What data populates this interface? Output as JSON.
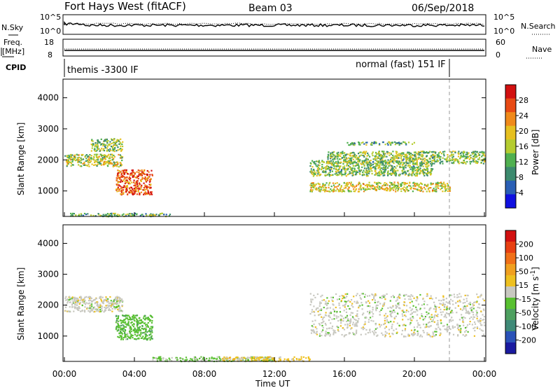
{
  "header": {
    "title": "Fort Hays West (fitACF)",
    "beam": "Beam 03",
    "date": "06/Sep/2018"
  },
  "panels": {
    "nsky_label": "N.Sky",
    "nsearch_label": "N.Search",
    "freq_label_1": "Freq.",
    "freq_label_2": "[MHz]",
    "nave_label": "Nave",
    "cpid_label": "CPID",
    "noise_ticks_left": [
      "10^5",
      "10^0"
    ],
    "noise_ticks_right": [
      "10^5",
      "10^0"
    ],
    "freq_ticks": [
      "18",
      "8"
    ],
    "nave_ticks": [
      "60",
      "0"
    ],
    "cpid_text_1": "themis -3300 IF",
    "cpid_text_2": "normal (fast) 151 IF"
  },
  "colorbars": {
    "power": {
      "label": "Power [dB]",
      "ticks": [
        "28",
        "24",
        "20",
        "16",
        "12",
        "8",
        "4"
      ],
      "colors": [
        "#1010e0",
        "#2a5fb5",
        "#3c8a6e",
        "#50b050",
        "#b5cc30",
        "#e6c020",
        "#f08a1a",
        "#e84a14",
        "#d21010"
      ]
    },
    "velocity": {
      "label": "Velocity [m s^-1]",
      "ticks": [
        "200",
        "100",
        "50",
        "15",
        "-15",
        "-50",
        "-100",
        "-200"
      ],
      "colors": [
        "#1a1aa0",
        "#2a52b8",
        "#3f8a78",
        "#4ea060",
        "#58c030",
        "#c8c8c0",
        "#eec020",
        "#f0a020",
        "#f07018",
        "#e84012",
        "#d21010"
      ]
    }
  },
  "chart_data": [
    {
      "type": "heatmap",
      "name": "Power",
      "ylabel": "Slant Range [km]",
      "xlabel": "",
      "ylim": [
        180,
        4600
      ],
      "xlim_hours": [
        0,
        24
      ],
      "yticks": [
        "4000",
        "3000",
        "2000",
        "1000"
      ],
      "ytick_values": [
        4000,
        3000,
        2000,
        1000
      ],
      "colorbar_label": "Power [dB]",
      "colorbar_range": [
        0,
        32
      ],
      "regions": [
        {
          "t": [
            0.0,
            3.3
          ],
          "r": [
            1800,
            2200
          ],
          "value": 16
        },
        {
          "t": [
            1.5,
            3.3
          ],
          "r": [
            2300,
            2700
          ],
          "value": 14
        },
        {
          "t": [
            2.9,
            5.0
          ],
          "r": [
            900,
            1700
          ],
          "value": 26
        },
        {
          "t": [
            0.3,
            6.0
          ],
          "r": [
            200,
            300
          ],
          "value": 12
        },
        {
          "t": [
            14.0,
            22.0
          ],
          "r": [
            1000,
            1300
          ],
          "value": 18
        },
        {
          "t": [
            14.0,
            21.0
          ],
          "r": [
            1500,
            2000
          ],
          "value": 14
        },
        {
          "t": [
            15.0,
            24.0
          ],
          "r": [
            1900,
            2300
          ],
          "value": 14
        },
        {
          "t": [
            16.0,
            20.0
          ],
          "r": [
            2500,
            2600
          ],
          "value": 12
        }
      ]
    },
    {
      "type": "heatmap",
      "name": "Velocity",
      "ylabel": "Slant Range [km]",
      "xlabel": "Time UT",
      "ylim": [
        180,
        4600
      ],
      "xlim_hours": [
        0,
        24
      ],
      "yticks": [
        "4000",
        "3000",
        "2000",
        "1000"
      ],
      "ytick_values": [
        4000,
        3000,
        2000,
        1000
      ],
      "xticks": [
        "00:00",
        "04:00",
        "08:00",
        "12:00",
        "16:00",
        "20:00",
        "00:00"
      ],
      "colorbar_label": "Velocity [m s^-1]",
      "colorbar_range": [
        -250,
        250
      ],
      "regions": [
        {
          "t": [
            0.0,
            3.3
          ],
          "r": [
            1800,
            2300
          ],
          "value": 0
        },
        {
          "t": [
            2.9,
            5.0
          ],
          "r": [
            900,
            1700
          ],
          "value": -50
        },
        {
          "t": [
            5.0,
            12.0
          ],
          "r": [
            200,
            350
          ],
          "value": -30
        },
        {
          "t": [
            9.0,
            14.0
          ],
          "r": [
            200,
            350
          ],
          "value": 40
        },
        {
          "t": [
            14.0,
            24.0
          ],
          "r": [
            1000,
            2400
          ],
          "value": 0
        }
      ]
    }
  ]
}
